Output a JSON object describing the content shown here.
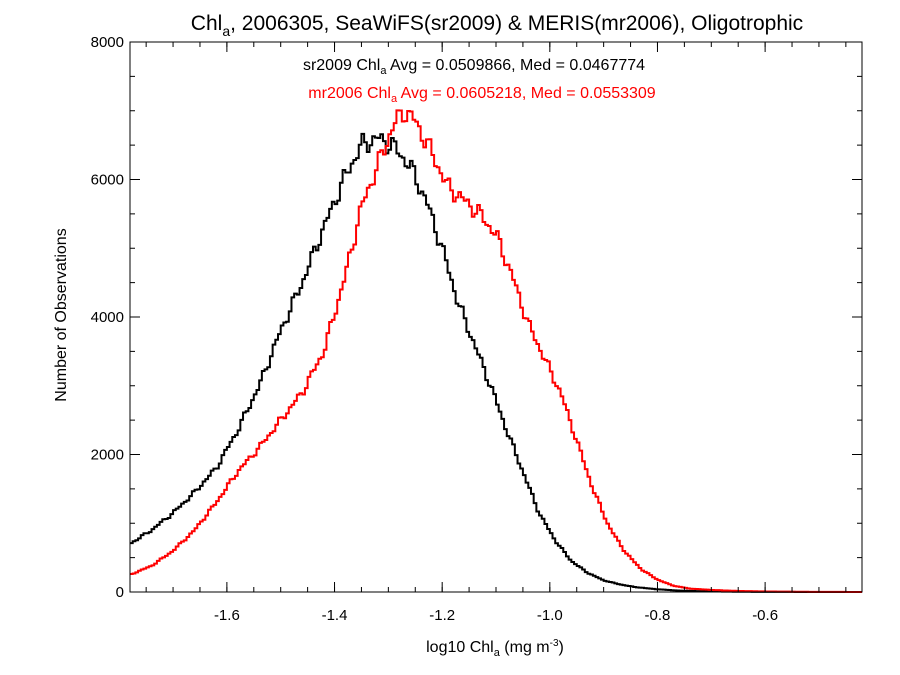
{
  "chart_data": {
    "type": "line",
    "title": {
      "prefix": "Chl",
      "sub": "a",
      "suffix": ", 2006305, SeaWiFS(sr2009) & MERIS(mr2006), Oligotrophic"
    },
    "xlabel": {
      "prefix": "log10 Chl",
      "sub": "a",
      "mid": " (mg m",
      "sup": "-3",
      "suffix": ")"
    },
    "ylabel": "Number of Observations",
    "xlim": [
      -1.78,
      -0.42
    ],
    "ylim": [
      0,
      8000
    ],
    "x_ticks": [
      {
        "value": -1.6,
        "label": "-1.6"
      },
      {
        "value": -1.4,
        "label": "-1.4"
      },
      {
        "value": -1.2,
        "label": "-1.2"
      },
      {
        "value": -1.0,
        "label": "-1.0"
      },
      {
        "value": -0.8,
        "label": "-0.8"
      },
      {
        "value": -0.6,
        "label": "-0.6"
      }
    ],
    "x_minor_step": 0.05,
    "y_ticks": [
      {
        "value": 0,
        "label": "0"
      },
      {
        "value": 2000,
        "label": "2000"
      },
      {
        "value": 4000,
        "label": "4000"
      },
      {
        "value": 6000,
        "label": "6000"
      },
      {
        "value": 8000,
        "label": "8000"
      }
    ],
    "y_minor_step": 500,
    "bin_width": 0.005,
    "annotations": [
      {
        "prefix": "sr2009 Chl",
        "sub": "a",
        "suffix": " Avg = 0.0509866, Med = 0.0467774",
        "color": "#000000"
      },
      {
        "prefix": "mr2006 Chl",
        "sub": "a",
        "suffix": " Avg = 0.0605218, Med = 0.0553309",
        "color": "#ff0000"
      }
    ],
    "series": [
      {
        "color": "#000000",
        "points": [
          [
            -1.78,
            700
          ],
          [
            -1.74,
            900
          ],
          [
            -1.7,
            1150
          ],
          [
            -1.66,
            1450
          ],
          [
            -1.62,
            1800
          ],
          [
            -1.58,
            2350
          ],
          [
            -1.54,
            3000
          ],
          [
            -1.5,
            3800
          ],
          [
            -1.46,
            4500
          ],
          [
            -1.42,
            5300
          ],
          [
            -1.38,
            6050
          ],
          [
            -1.35,
            6500
          ],
          [
            -1.32,
            6600
          ],
          [
            -1.29,
            6480
          ],
          [
            -1.26,
            6200
          ],
          [
            -1.23,
            5700
          ],
          [
            -1.2,
            5000
          ],
          [
            -1.17,
            4200
          ],
          [
            -1.14,
            3600
          ],
          [
            -1.11,
            3000
          ],
          [
            -1.08,
            2350
          ],
          [
            -1.05,
            1750
          ],
          [
            -1.02,
            1150
          ],
          [
            -0.99,
            750
          ],
          [
            -0.96,
            450
          ],
          [
            -0.93,
            280
          ],
          [
            -0.9,
            170
          ],
          [
            -0.87,
            110
          ],
          [
            -0.84,
            70
          ],
          [
            -0.8,
            40
          ],
          [
            -0.76,
            20
          ],
          [
            -0.72,
            12
          ],
          [
            -0.68,
            6
          ],
          [
            -0.64,
            3
          ],
          [
            -0.6,
            2
          ],
          [
            -0.55,
            1
          ],
          [
            -0.5,
            0
          ],
          [
            -0.42,
            0
          ]
        ]
      },
      {
        "color": "#ff0000",
        "points": [
          [
            -1.78,
            250
          ],
          [
            -1.74,
            380
          ],
          [
            -1.7,
            600
          ],
          [
            -1.66,
            900
          ],
          [
            -1.62,
            1300
          ],
          [
            -1.58,
            1750
          ],
          [
            -1.54,
            2100
          ],
          [
            -1.5,
            2500
          ],
          [
            -1.46,
            2900
          ],
          [
            -1.42,
            3500
          ],
          [
            -1.38,
            4600
          ],
          [
            -1.35,
            5600
          ],
          [
            -1.32,
            6200
          ],
          [
            -1.29,
            6800
          ],
          [
            -1.27,
            7000
          ],
          [
            -1.25,
            6850
          ],
          [
            -1.22,
            6400
          ],
          [
            -1.19,
            5900
          ],
          [
            -1.16,
            5700
          ],
          [
            -1.13,
            5500
          ],
          [
            -1.1,
            5200
          ],
          [
            -1.07,
            4600
          ],
          [
            -1.04,
            3900
          ],
          [
            -1.01,
            3400
          ],
          [
            -0.98,
            2900
          ],
          [
            -0.95,
            2200
          ],
          [
            -0.92,
            1500
          ],
          [
            -0.89,
            950
          ],
          [
            -0.86,
            580
          ],
          [
            -0.83,
            330
          ],
          [
            -0.8,
            180
          ],
          [
            -0.77,
            90
          ],
          [
            -0.74,
            50
          ],
          [
            -0.7,
            30
          ],
          [
            -0.65,
            15
          ],
          [
            -0.6,
            8
          ],
          [
            -0.55,
            4
          ],
          [
            -0.5,
            2
          ],
          [
            -0.45,
            1
          ],
          [
            -0.42,
            0
          ]
        ]
      }
    ]
  }
}
